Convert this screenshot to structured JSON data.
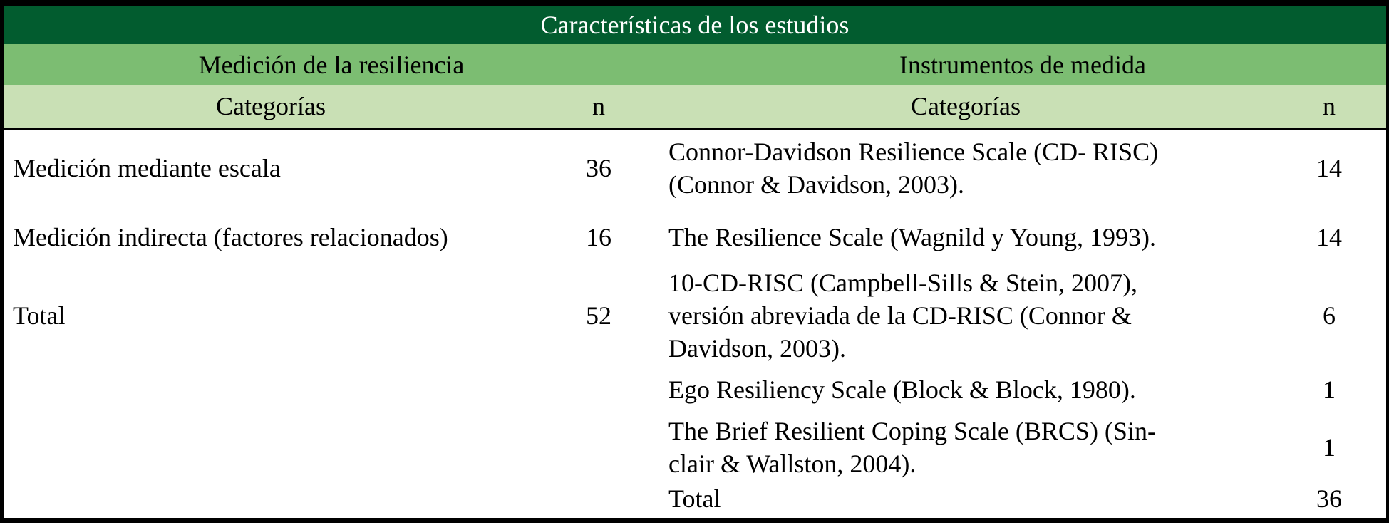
{
  "colors": {
    "title_bg": "#025C2F",
    "title_text": "#FFFFFF",
    "section_bg": "#7CBD72",
    "header_bg": "#C9E0B5",
    "border": "#000000",
    "body_text": "#000000",
    "body_bg": "#FFFFFF"
  },
  "table": {
    "title": "Características de los estudios",
    "left_section": {
      "header": "Medición de la resiliencia",
      "category_col": "Categorías",
      "n_col": "n",
      "rows": [
        {
          "category": "Medición mediante escala",
          "n": "36"
        },
        {
          "category": "Medición indirecta (factores relacionados)",
          "n": "16"
        },
        {
          "category": "Total",
          "n": "52"
        }
      ]
    },
    "right_section": {
      "header": "Instrumentos de medida",
      "category_col": "Categorías",
      "n_col": "n",
      "rows": [
        {
          "category": "Connor-Davidson Resilience Scale (CD- RISC)\n(Connor & Davidson, 2003).",
          "n": "14"
        },
        {
          "category": "The Resilience Scale (Wagnild y Young, 1993).",
          "n": "14"
        },
        {
          "category": "10-CD-RISC (Campbell-Sills & Stein, 2007),\nversión abreviada de la CD-RISC (Connor &\nDavidson, 2003).",
          "n": "6"
        },
        {
          "category": "Ego Resiliency Scale (Block & Block, 1980).",
          "n": "1"
        },
        {
          "category": "The Brief Resilient Coping Scale (BRCS) (Sin-\nclair & Wallston, 2004).",
          "n": "1"
        },
        {
          "category": "Total",
          "n": "36"
        }
      ]
    }
  }
}
